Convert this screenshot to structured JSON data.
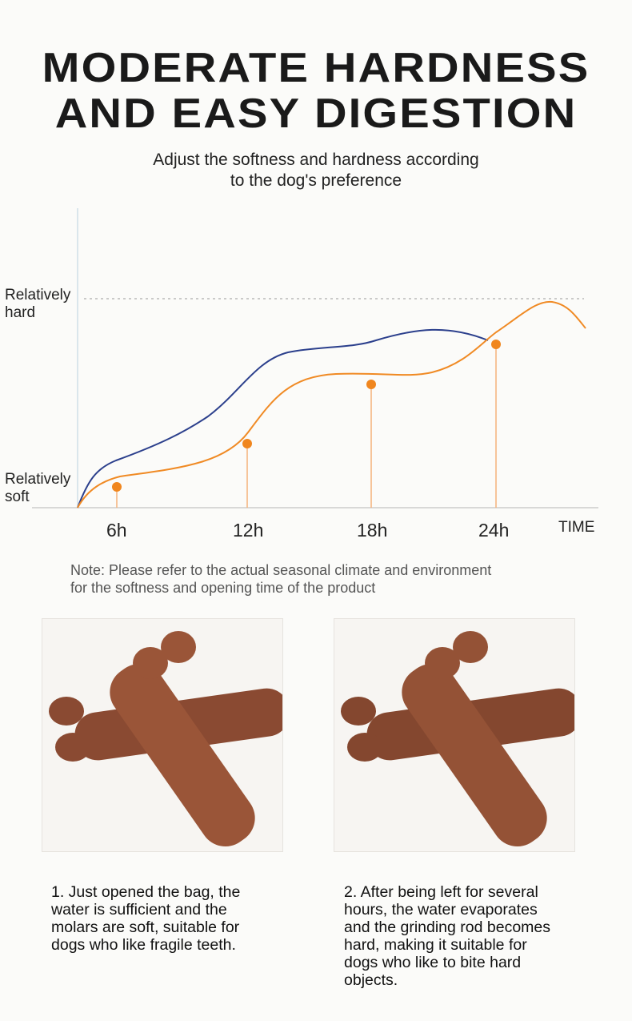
{
  "header": {
    "title": [
      "MODERATE HARDNESS",
      "AND EASY DIGESTION"
    ],
    "subtitle": [
      "Adjust the softness and hardness according",
      "to the dog's preference"
    ]
  },
  "diagram": {
    "hard_label": [
      "Relatively",
      "hard"
    ],
    "soft_label": [
      "Relatively",
      "soft"
    ],
    "time_labels": [
      "6h",
      "12h",
      "18h",
      "24h"
    ],
    "axis_label": "TIME"
  },
  "note": [
    "Note: Please refer to the actual seasonal climate and environment",
    "for the softness and opening time of the product"
  ],
  "cards": [
    {
      "caption": [
        "1. Just opened the bag, the",
        "water is sufficient and the",
        "molars are soft, suitable for",
        "dogs who like fragile teeth."
      ]
    },
    {
      "caption": [
        "2. After being left for several",
        "hours, the water evaporates",
        "and the grinding rod becomes",
        "hard, making it suitable for",
        "dogs who like to bite hard",
        "objects."
      ]
    }
  ]
}
